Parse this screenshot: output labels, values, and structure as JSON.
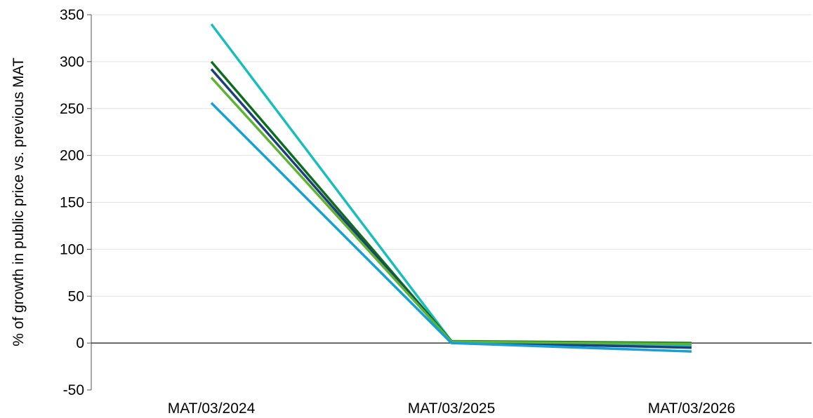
{
  "chart_data": {
    "type": "line",
    "title": "",
    "xlabel": "",
    "ylabel": "% of growth in public price vs. previous MAT",
    "categories": [
      "MAT/03/2024",
      "MAT/03/2025",
      "MAT/03/2026"
    ],
    "ylim": [
      -50,
      350
    ],
    "yticks": [
      "-50",
      "0",
      "50",
      "100",
      "150",
      "200",
      "250",
      "300",
      "350"
    ],
    "grid": "horizontal",
    "legend": "none",
    "series": [
      {
        "color": "#17BEBB",
        "values": [
          340,
          2,
          -3
        ]
      },
      {
        "color": "#0B6E1F",
        "values": [
          300,
          2,
          0
        ]
      },
      {
        "color": "#1F3F7A",
        "values": [
          292,
          1,
          -5
        ]
      },
      {
        "color": "#5DB332",
        "values": [
          283,
          1.5,
          -1
        ]
      },
      {
        "color": "#13A0DB",
        "values": [
          256,
          0,
          -9
        ]
      }
    ]
  }
}
